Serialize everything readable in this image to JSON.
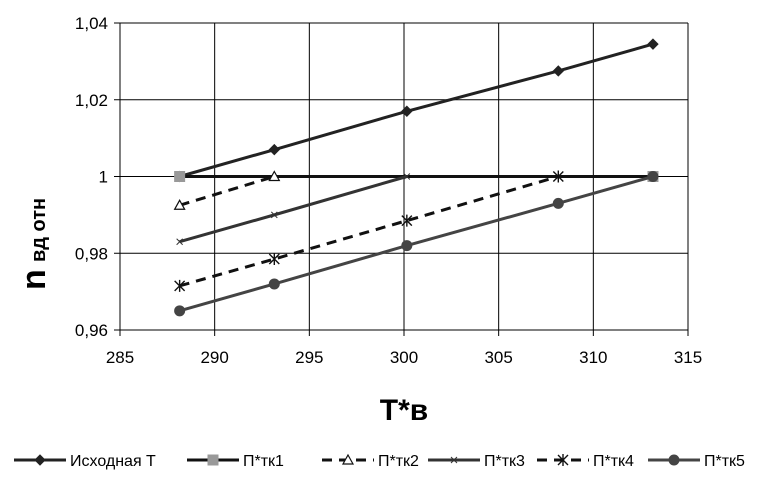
{
  "chart_data": {
    "type": "line",
    "title": "",
    "xlabel": "T*в",
    "ylabel_main": "n",
    "ylabel_sub": "вд отн",
    "xlim": [
      285,
      315
    ],
    "ylim": [
      0.96,
      1.04
    ],
    "xticks": [
      285,
      290,
      295,
      300,
      305,
      310,
      315
    ],
    "yticks": [
      0.96,
      0.98,
      1.0,
      1.02,
      1.04
    ],
    "xtick_labels": [
      "285",
      "290",
      "295",
      "300",
      "305",
      "310",
      "315"
    ],
    "ytick_labels": [
      "0,96",
      "0,98",
      "1",
      "1,02",
      "1,04"
    ],
    "grid": true,
    "legend_position": "bottom",
    "series": [
      {
        "name": "Исходная Т",
        "color": "#222222",
        "line_style": "solid",
        "marker": "diamond",
        "points": [
          [
            288.15,
            1.0
          ],
          [
            293.15,
            1.007
          ],
          [
            300.15,
            1.017
          ],
          [
            308.15,
            1.0275
          ],
          [
            313.15,
            1.0345
          ]
        ]
      },
      {
        "name": "П*тк1",
        "color": "#111111",
        "line_style": "solid",
        "marker_color": "#999999",
        "marker": "square",
        "points": [
          [
            288.15,
            1.0
          ],
          [
            313.15,
            1.0
          ]
        ]
      },
      {
        "name": "П*тк2",
        "color": "#111111",
        "line_style": "dashed",
        "marker": "triangle",
        "points": [
          [
            288.15,
            0.9925
          ],
          [
            293.15,
            1.0
          ]
        ]
      },
      {
        "name": "П*тк3",
        "color": "#333333",
        "line_style": "solid",
        "marker": "x",
        "points": [
          [
            288.15,
            0.983
          ],
          [
            293.15,
            0.99
          ],
          [
            300.15,
            1.0
          ]
        ]
      },
      {
        "name": "П*тк4",
        "color": "#111111",
        "line_style": "dashed",
        "marker": "star",
        "points": [
          [
            288.15,
            0.9715
          ],
          [
            293.15,
            0.9785
          ],
          [
            300.15,
            0.9885
          ],
          [
            308.15,
            1.0
          ]
        ]
      },
      {
        "name": "П*тк5",
        "color": "#444444",
        "line_style": "solid",
        "marker": "circle",
        "points": [
          [
            288.15,
            0.965
          ],
          [
            293.15,
            0.972
          ],
          [
            300.15,
            0.982
          ],
          [
            308.15,
            0.993
          ],
          [
            313.15,
            1.0
          ]
        ]
      }
    ]
  }
}
